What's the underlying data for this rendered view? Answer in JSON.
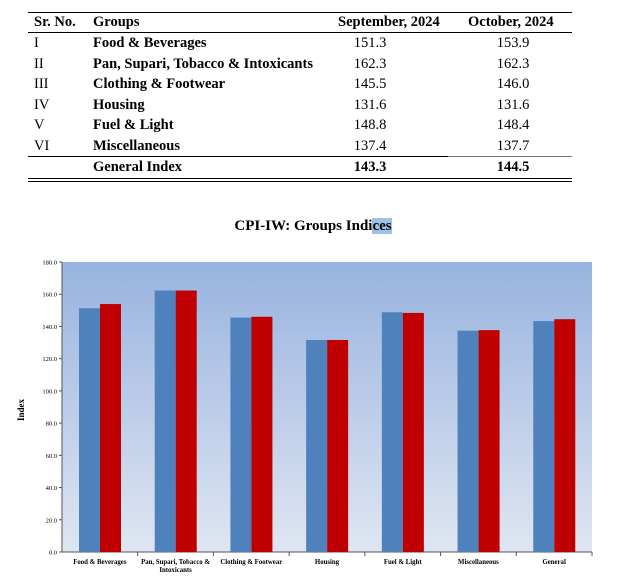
{
  "table": {
    "headers": [
      "Sr. No.",
      "Groups",
      "September, 2024",
      "October, 2024"
    ],
    "rows": [
      {
        "sr": "I",
        "group": "Food & Beverages",
        "sep": "151.3",
        "oct": "153.9"
      },
      {
        "sr": "II",
        "group": "Pan, Supari, Tobacco & Intoxicants",
        "sep": "162.3",
        "oct": "162.3"
      },
      {
        "sr": "III",
        "group": "Clothing & Footwear",
        "sep": "145.5",
        "oct": "146.0"
      },
      {
        "sr": "IV",
        "group": "Housing",
        "sep": "131.6",
        "oct": "131.6"
      },
      {
        "sr": "V",
        "group": "Fuel & Light",
        "sep": "148.8",
        "oct": "148.4"
      },
      {
        "sr": "VI",
        "group": "Miscellaneous",
        "sep": "137.4",
        "oct": "137.7"
      }
    ],
    "total": {
      "group": "General Index",
      "sep": "143.3",
      "oct": "144.5"
    }
  },
  "chart_data": {
    "type": "bar",
    "title_main": "CPI-IW: Groups Indi",
    "title_highlight": "ces",
    "title": "CPI-IW: Groups Indices",
    "ylabel": "Index",
    "xlabel": "",
    "ylim": [
      0,
      180
    ],
    "yticks": [
      "0.0",
      "20.0",
      "40.0",
      "60.0",
      "80.0",
      "100.0",
      "120.0",
      "140.0",
      "160.0",
      "180.0"
    ],
    "categories": [
      "Food & Beverages",
      "Pan, Supari, Tobacco & Intoxicants",
      "Clothing & Footwear",
      "Housing",
      "Fuel & Light",
      "Miscellaneous",
      "General"
    ],
    "series": [
      {
        "name": "September, 2024",
        "color": "#4f81bd",
        "values": [
          151.3,
          162.3,
          145.5,
          131.6,
          148.8,
          137.4,
          143.3
        ]
      },
      {
        "name": "October, 2024",
        "color": "#c00000",
        "values": [
          153.9,
          162.3,
          146.0,
          131.6,
          148.4,
          137.7,
          144.5
        ]
      }
    ],
    "grid": false,
    "legend": "none"
  }
}
